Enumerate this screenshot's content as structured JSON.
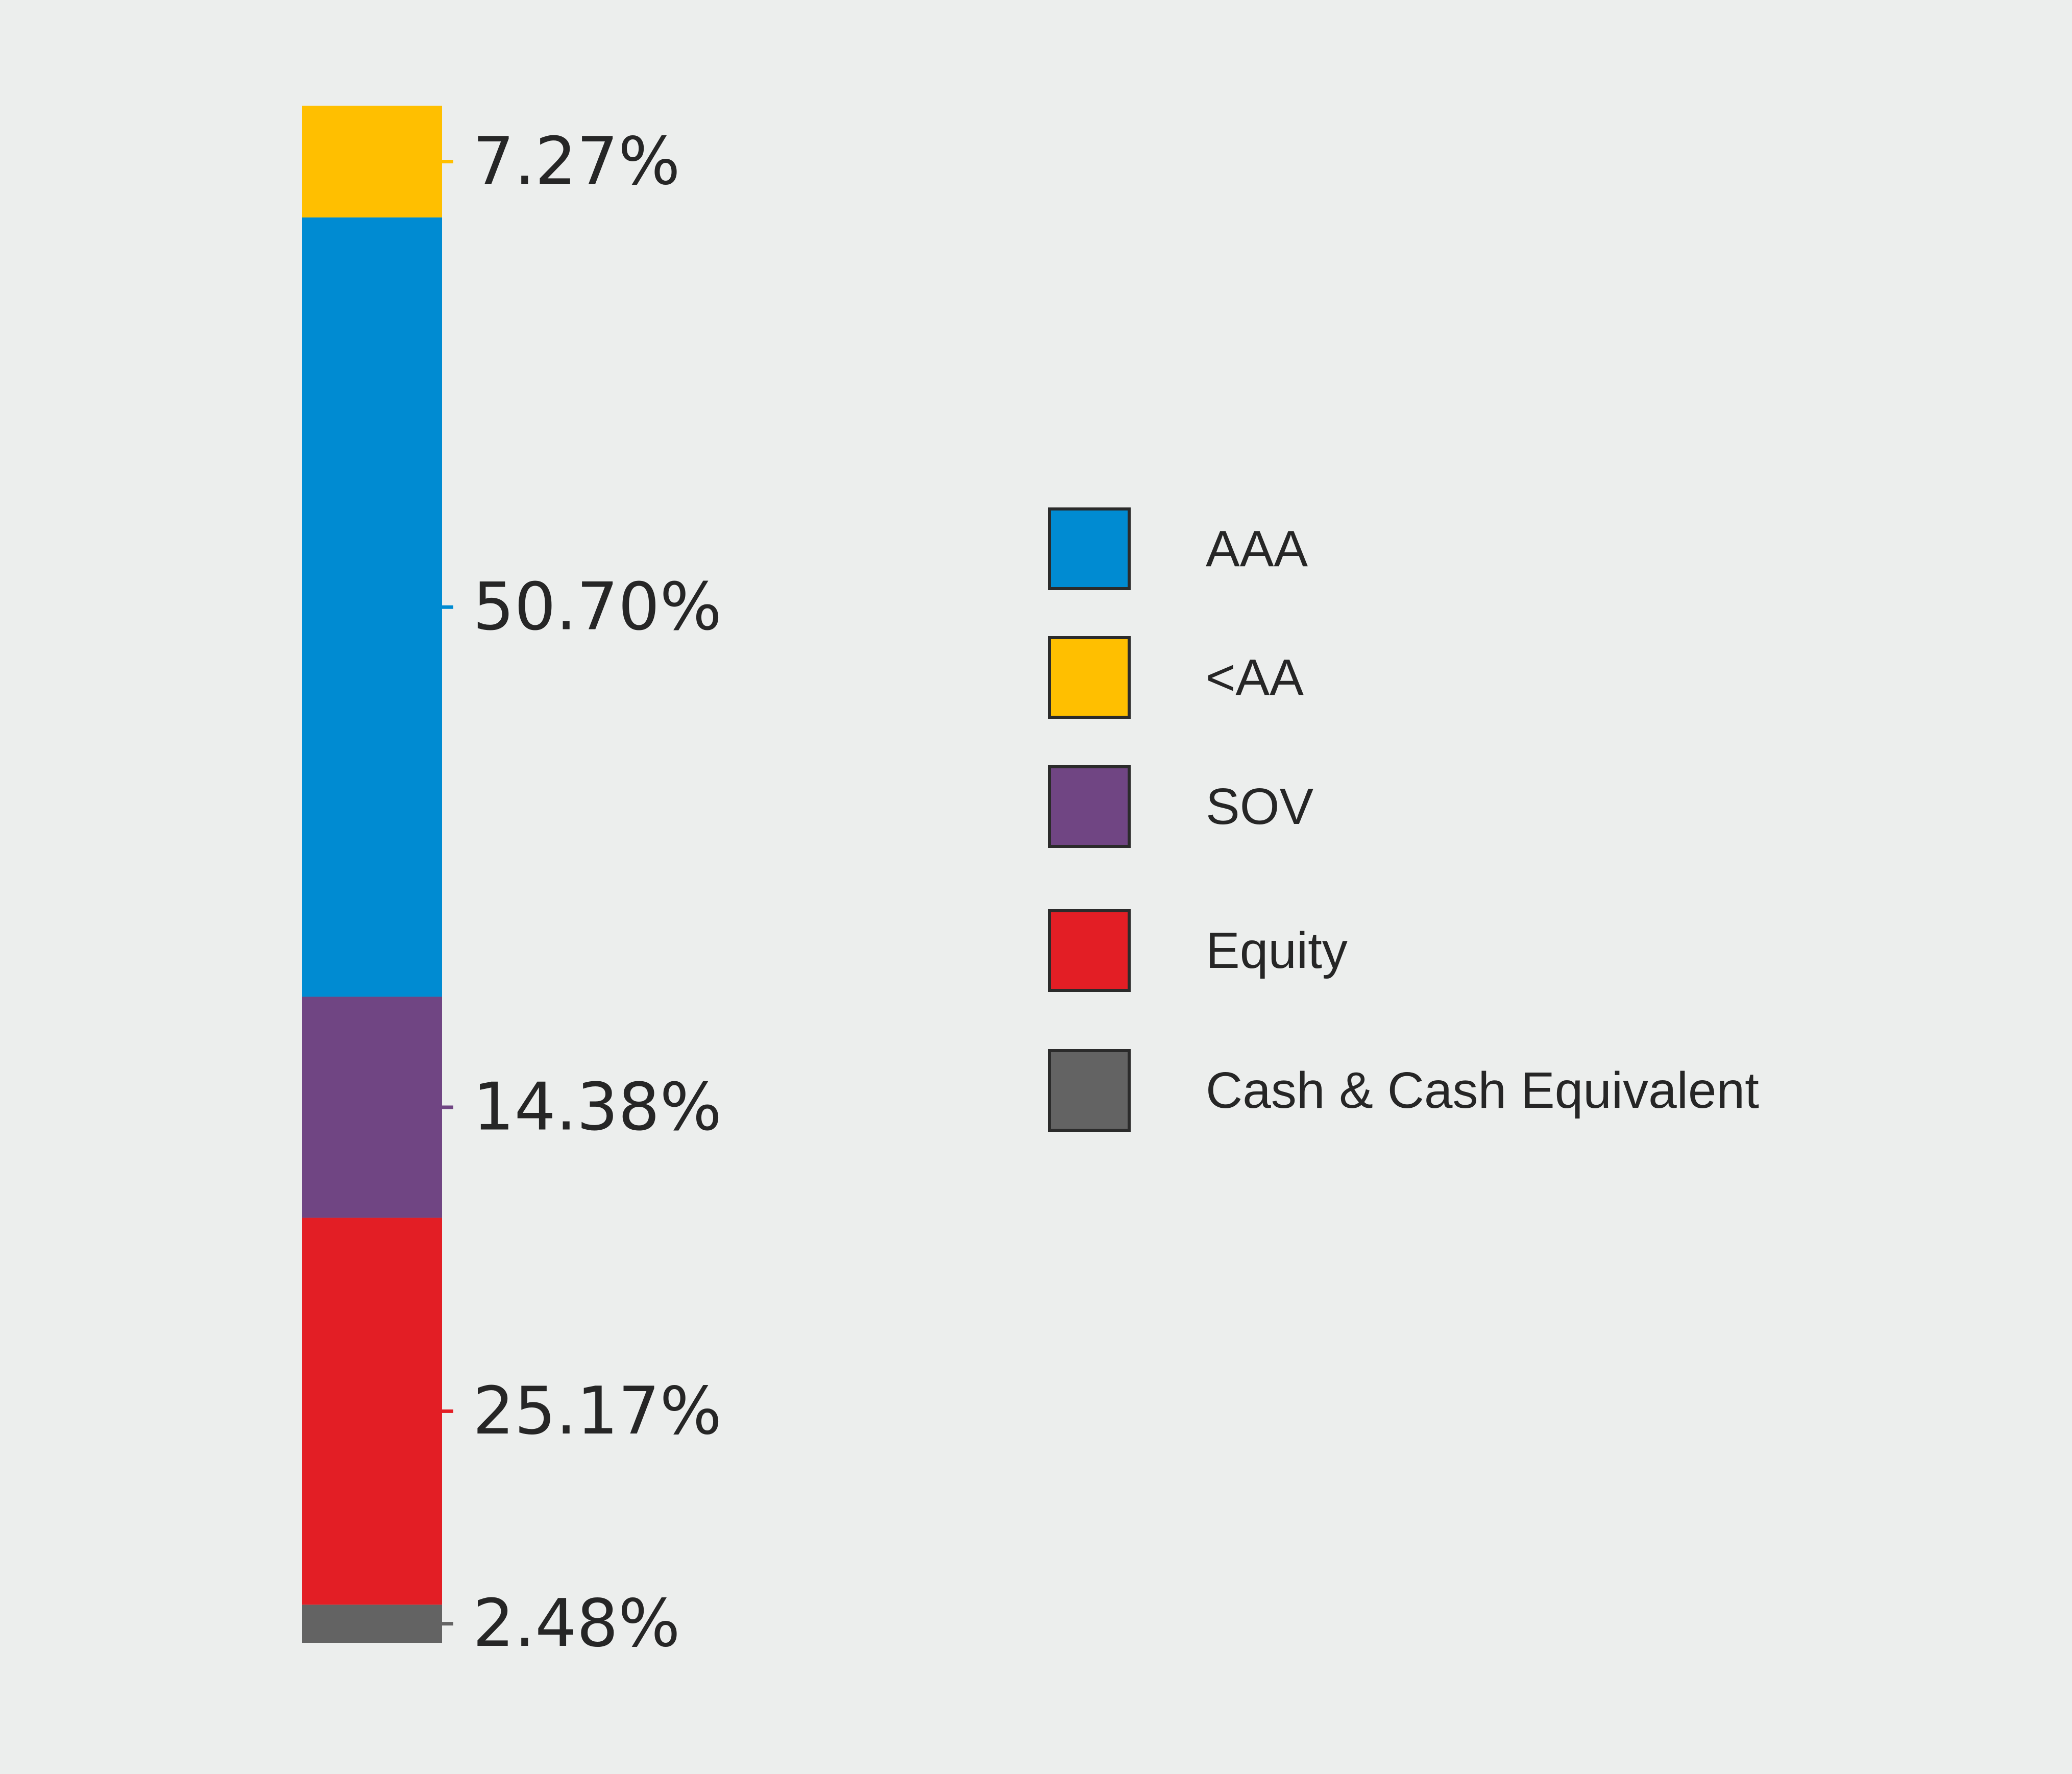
{
  "chart_data": {
    "type": "bar",
    "stacked": true,
    "orientation": "vertical",
    "series": [
      {
        "name": "Cash & Cash Equivalent",
        "value": 2.48,
        "label": "2.48%",
        "color": "#636363"
      },
      {
        "name": "Equity",
        "value": 25.17,
        "label": "25.17%",
        "color": "#e31e25"
      },
      {
        "name": "SOV",
        "value": 14.38,
        "label": "14.38%",
        "color": "#704583"
      },
      {
        "name": "AAA",
        "value": 50.7,
        "label": "50.70%",
        "color": "#008bd2"
      },
      {
        "name": "<AA",
        "value": 7.27,
        "label": "7.27%",
        "color": "#ffbf00"
      }
    ],
    "legend": {
      "position": "right",
      "items": [
        {
          "label": "AAA",
          "color": "#008bd2"
        },
        {
          "label": "<AA",
          "color": "#ffbf00"
        },
        {
          "label": "SOV",
          "color": "#704583"
        },
        {
          "label": "Equity",
          "color": "#e31e25"
        },
        {
          "label": "Cash & Cash Equivalent",
          "color": "#636363"
        }
      ]
    },
    "unit": "%",
    "grid": false,
    "background": "#eceeed"
  }
}
